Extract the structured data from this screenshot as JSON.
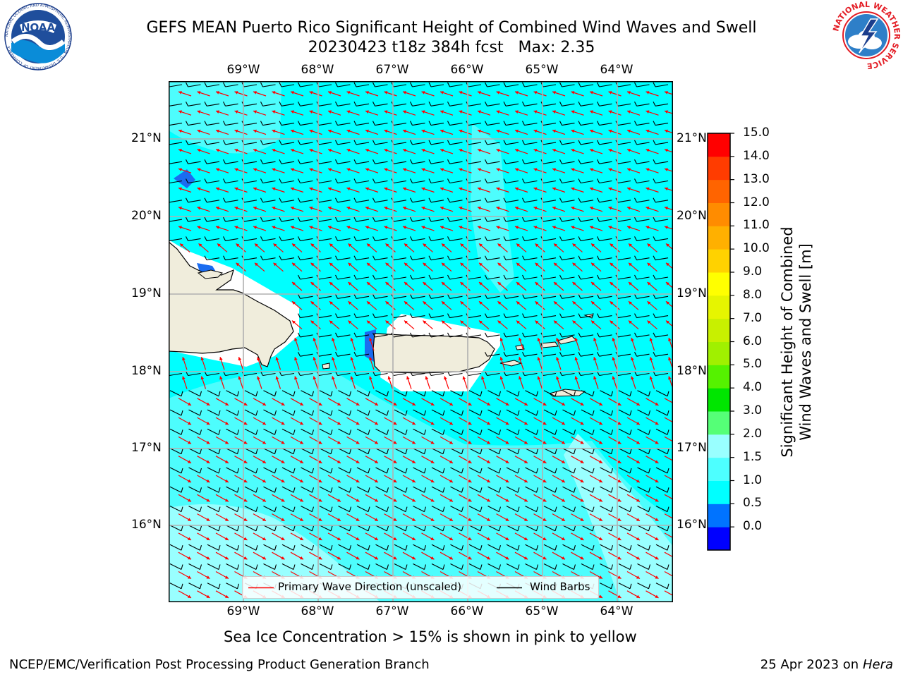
{
  "header": {
    "title_line1": "GEFS MEAN Puerto Rico Significant Height of Combined Wind Waves and Swell",
    "title_line2": "20230423 t18z 384h fcst   Max: 2.35"
  },
  "logos": {
    "noaa_text": "NOAA",
    "noaa_ring_text": "NATIONAL OCEANIC AND ATMOSPHERIC ADMINISTRATION · U.S. DEPARTMENT OF COMMERCE",
    "nws_ring_text": "NATIONAL WEATHER SERVICE"
  },
  "map": {
    "lon_labels": [
      "69°W",
      "68°W",
      "67°W",
      "66°W",
      "65°W",
      "64°W"
    ],
    "lat_labels": [
      "21°N",
      "20°N",
      "19°N",
      "18°N",
      "17°N",
      "16°N"
    ],
    "legend": {
      "wave_direction": "Primary Wave Direction (unscaled)",
      "wind_barbs": "Wind Barbs"
    },
    "colors": {
      "ocean_main": "#00ffff",
      "ocean_light": "#4dfdfd",
      "ocean_pale": "#99ffff",
      "land": "#f0eddc",
      "wave_arrow": "#ff0000"
    }
  },
  "colorbar": {
    "label_line1": "Significant Height of Combined",
    "label_line2": "Wind Waves and Swell [m]",
    "ticks": [
      "15.0",
      "14.0",
      "13.0",
      "12.0",
      "11.0",
      "10.0",
      "9.0",
      "8.0",
      "7.0",
      "6.0",
      "5.0",
      "4.0",
      "3.0",
      "2.0",
      "1.5",
      "1.0",
      "0.5",
      "0.0"
    ],
    "colors": [
      "#0000ff",
      "#0073ff",
      "#00ffff",
      "#4dffff",
      "#99ffff",
      "#55ff77",
      "#00e600",
      "#55f200",
      "#a0f000",
      "#c8f000",
      "#e6f500",
      "#ffff00",
      "#ffd200",
      "#ffb000",
      "#ff8c00",
      "#ff6400",
      "#ff3c00",
      "#ff0000"
    ]
  },
  "footer": {
    "subtitle": "Sea Ice Concentration > 15% is shown in pink to yellow",
    "left": "NCEP/EMC/Verification Post Processing Product Generation Branch",
    "right_prefix": "25 Apr 2023 on",
    "right_machine": "Hera"
  }
}
